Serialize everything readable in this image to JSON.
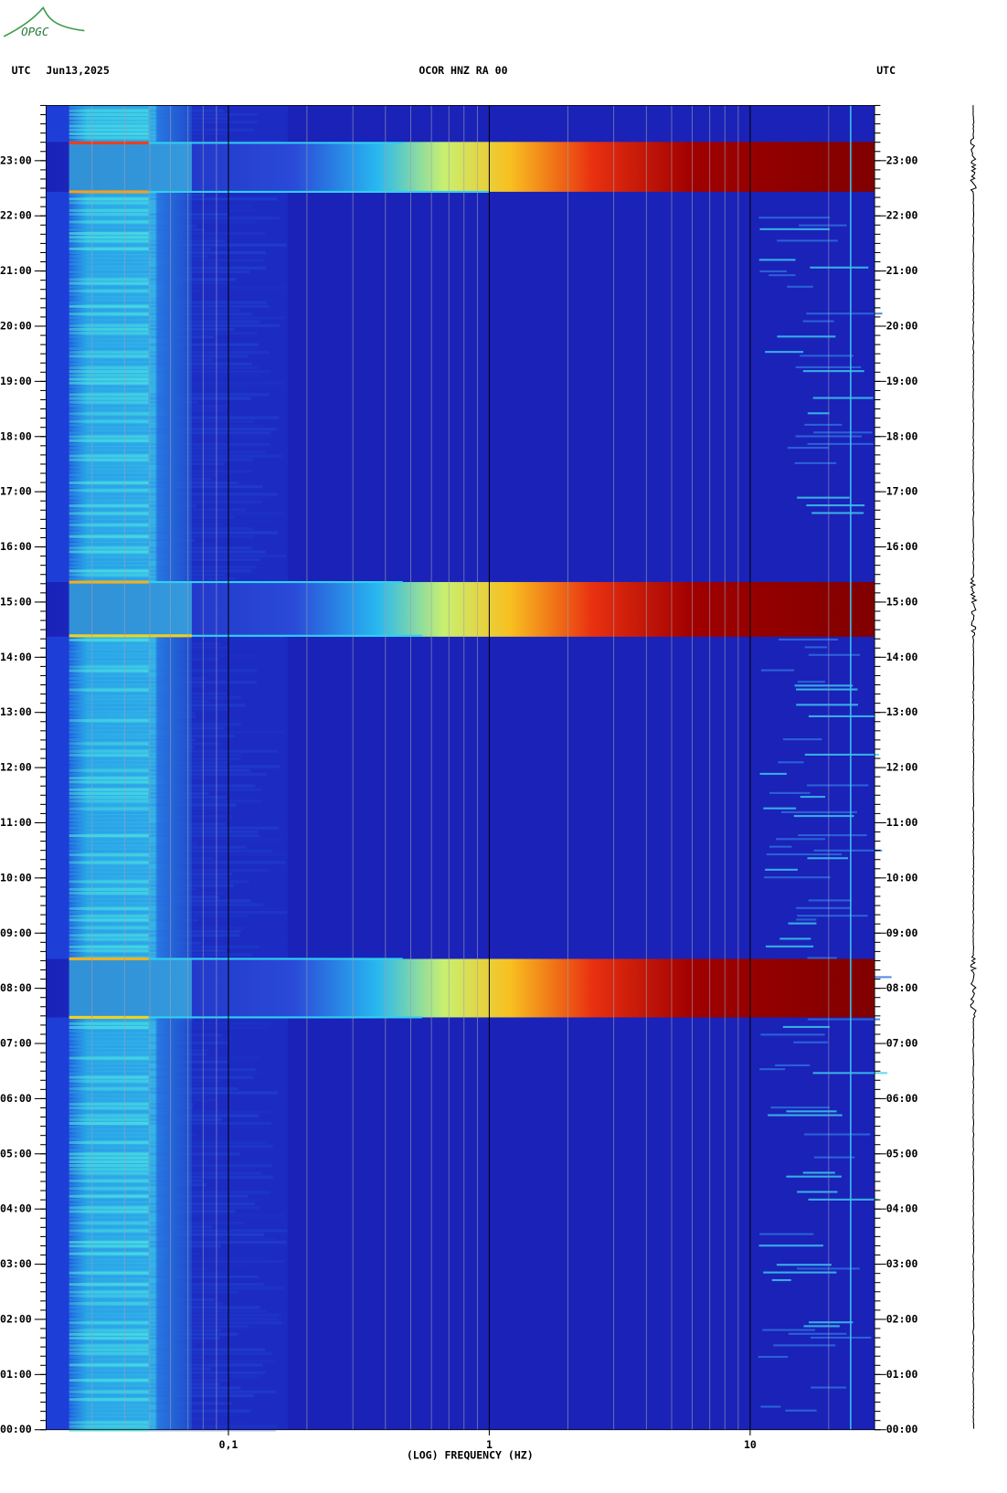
{
  "logo": "OPGC",
  "chart_data": {
    "type": "spectrogram",
    "title": "OCOR HNZ RA 00",
    "date": "Jun13,2025",
    "left_label": "UTC",
    "right_label": "UTC",
    "x_label": "(LOG) FREQUENCY (HZ)",
    "xscale": "log",
    "xlim": [
      0.02,
      30
    ],
    "xticks": [
      {
        "value": 0.1,
        "label": "0,1"
      },
      1,
      10
    ],
    "ylim": [
      0,
      24
    ],
    "yticks": [
      {
        "value": 0,
        "label": "00:00"
      },
      {
        "value": 1,
        "label": "01:00"
      },
      {
        "value": 2,
        "label": "02:00"
      },
      {
        "value": 3,
        "label": "03:00"
      },
      {
        "value": 4,
        "label": "04:00"
      },
      {
        "value": 5,
        "label": "05:00"
      },
      {
        "value": 6,
        "label": "06:00"
      },
      {
        "value": 7,
        "label": "07:00"
      },
      {
        "value": 8,
        "label": "08:00"
      },
      {
        "value": 9,
        "label": "09:00"
      },
      {
        "value": 10,
        "label": "10:00"
      },
      {
        "value": 11,
        "label": "11:00"
      },
      {
        "value": 12,
        "label": "12:00"
      },
      {
        "value": 13,
        "label": "13:00"
      },
      {
        "value": 14,
        "label": "14:00"
      },
      {
        "value": 15,
        "label": "15:00"
      },
      {
        "value": 16,
        "label": "16:00"
      },
      {
        "value": 17,
        "label": "17:00"
      },
      {
        "value": 18,
        "label": "18:00"
      },
      {
        "value": 19,
        "label": "19:00"
      },
      {
        "value": 20,
        "label": "20:00"
      },
      {
        "value": 21,
        "label": "21:00"
      },
      {
        "value": 22,
        "label": "22:00"
      },
      {
        "value": 23,
        "label": "23:00"
      }
    ]
  }
}
